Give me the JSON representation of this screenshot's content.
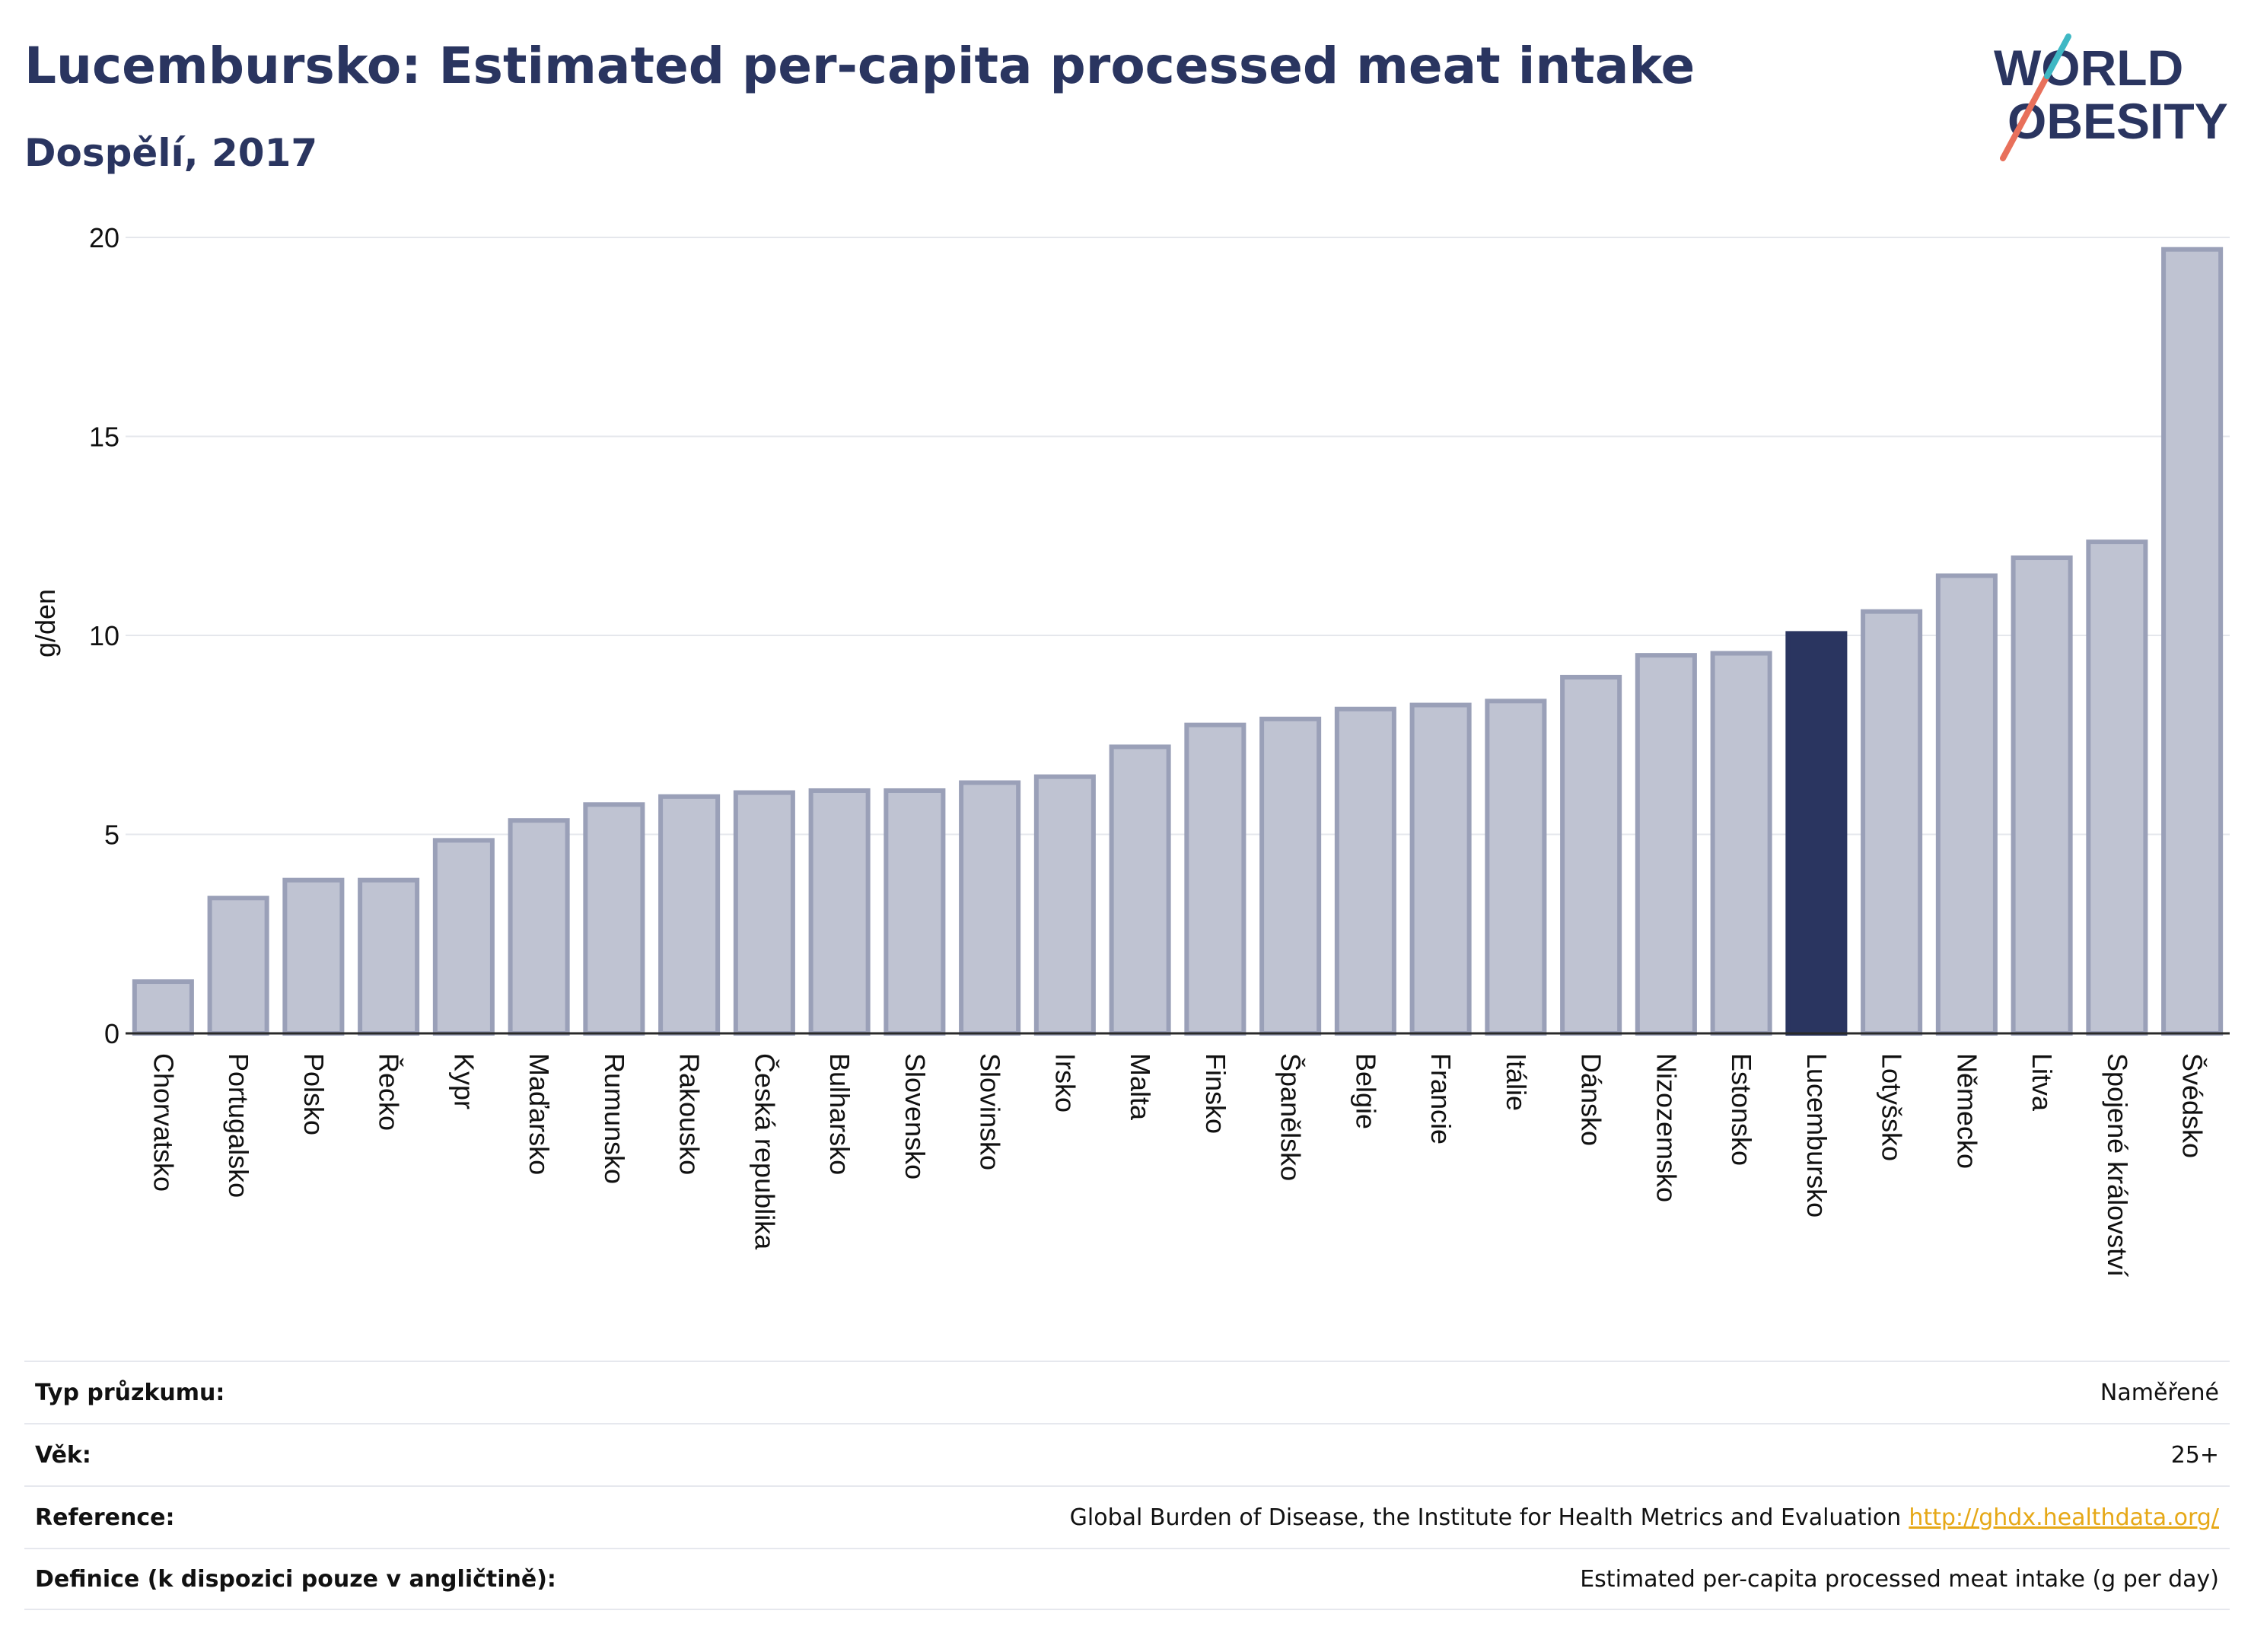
{
  "header": {
    "title": "Lucembursko: Estimated per-capita processed meat intake",
    "subtitle": "Dospělí, 2017"
  },
  "logo": {
    "line1": "WORLD",
    "line2": "OBESITY",
    "icon": "world-obesity-logo",
    "slash_colors": [
      "#e8705b",
      "#3fb8c4"
    ]
  },
  "colors": {
    "highlight": "#2a3560",
    "bar": "#bfc3d2",
    "bar_border": "#9aa0b8"
  },
  "chart_data": {
    "type": "bar",
    "title": "Lucembursko: Estimated per-capita processed meat intake",
    "subtitle": "Dospělí, 2017",
    "ylabel": "g/den",
    "xlabel": "",
    "ylim": [
      0,
      20
    ],
    "yticks": [
      0,
      5,
      10,
      15,
      20
    ],
    "grid": true,
    "highlight": "Lucembursko",
    "categories": [
      "Chorvatsko",
      "Portugalsko",
      "Polsko",
      "Řecko",
      "Kypr",
      "Maďarsko",
      "Rumunsko",
      "Rakousko",
      "Česká republika",
      "Bulharsko",
      "Slovensko",
      "Slovinsko",
      "Irsko",
      "Malta",
      "Finsko",
      "Španělsko",
      "Belgie",
      "Francie",
      "Itálie",
      "Dánsko",
      "Nizozemsko",
      "Estonsko",
      "Lucembursko",
      "Lotyšsko",
      "Německo",
      "Litva",
      "Spojené království",
      "Švédsko"
    ],
    "values": [
      1.3,
      3.4,
      3.85,
      3.85,
      4.85,
      5.35,
      5.75,
      5.95,
      6.05,
      6.1,
      6.1,
      6.3,
      6.45,
      7.2,
      7.75,
      7.9,
      8.15,
      8.25,
      8.35,
      8.95,
      9.5,
      9.55,
      10.05,
      10.6,
      11.5,
      11.95,
      12.35,
      19.7
    ]
  },
  "info": {
    "rows": [
      {
        "label": "Typ průzkumu:",
        "value": "Naměřené"
      },
      {
        "label": "Věk:",
        "value": "25+"
      },
      {
        "label": "Reference:",
        "value": "Global Burden of Disease, the Institute for Health Metrics and Evaluation",
        "link": "http://ghdx.healthdata.org/"
      },
      {
        "label": "Definice (k dispozici pouze v angličtině):",
        "value": "Estimated per-capita processed meat intake (g per day)"
      }
    ]
  }
}
